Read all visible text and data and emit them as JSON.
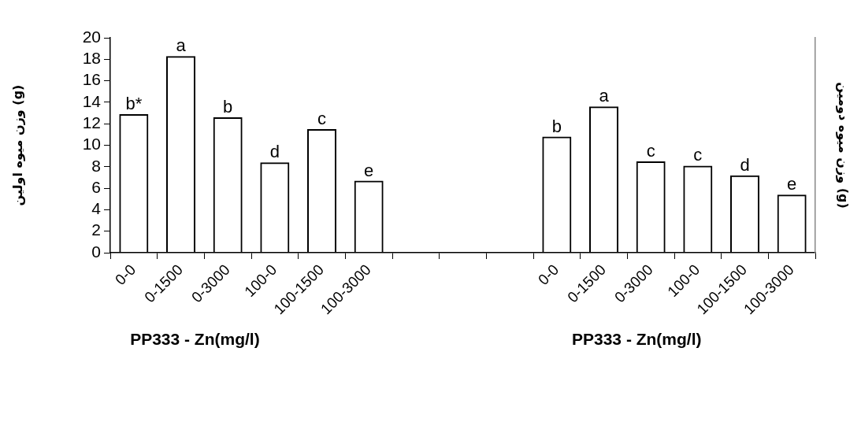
{
  "chart_data": {
    "type": "bar",
    "ylabel": "وزن میوه اولین (g)",
    "y2label": "وزن میوه دومین (g)",
    "xlabel": "PP333 - Zn(mg/l)",
    "annotations": [
      "PP333 - Zn(mg/l)"
    ],
    "categories": [
      "0-0",
      "0-1500",
      "0-3000",
      "100-0",
      "100-1500",
      "100-3000",
      null,
      null,
      null,
      "0-0",
      "0-1500",
      "0-3000",
      "100-0",
      "100-1500",
      "100-3000"
    ],
    "values": [
      12.9,
      18.3,
      12.6,
      8.4,
      11.5,
      6.7,
      null,
      null,
      null,
      10.8,
      13.6,
      8.5,
      8.1,
      7.2,
      5.4
    ],
    "value_labels": [
      "b*",
      "a",
      "b",
      "d",
      "c",
      "e",
      null,
      null,
      null,
      "b",
      "a",
      "c",
      "c",
      "d",
      "e"
    ],
    "color": "#000000",
    "ylim": [
      0,
      20
    ],
    "yticks": [
      0,
      2,
      4,
      6,
      8,
      10,
      12,
      14,
      16,
      18,
      20
    ],
    "grid": false,
    "legend": false
  }
}
